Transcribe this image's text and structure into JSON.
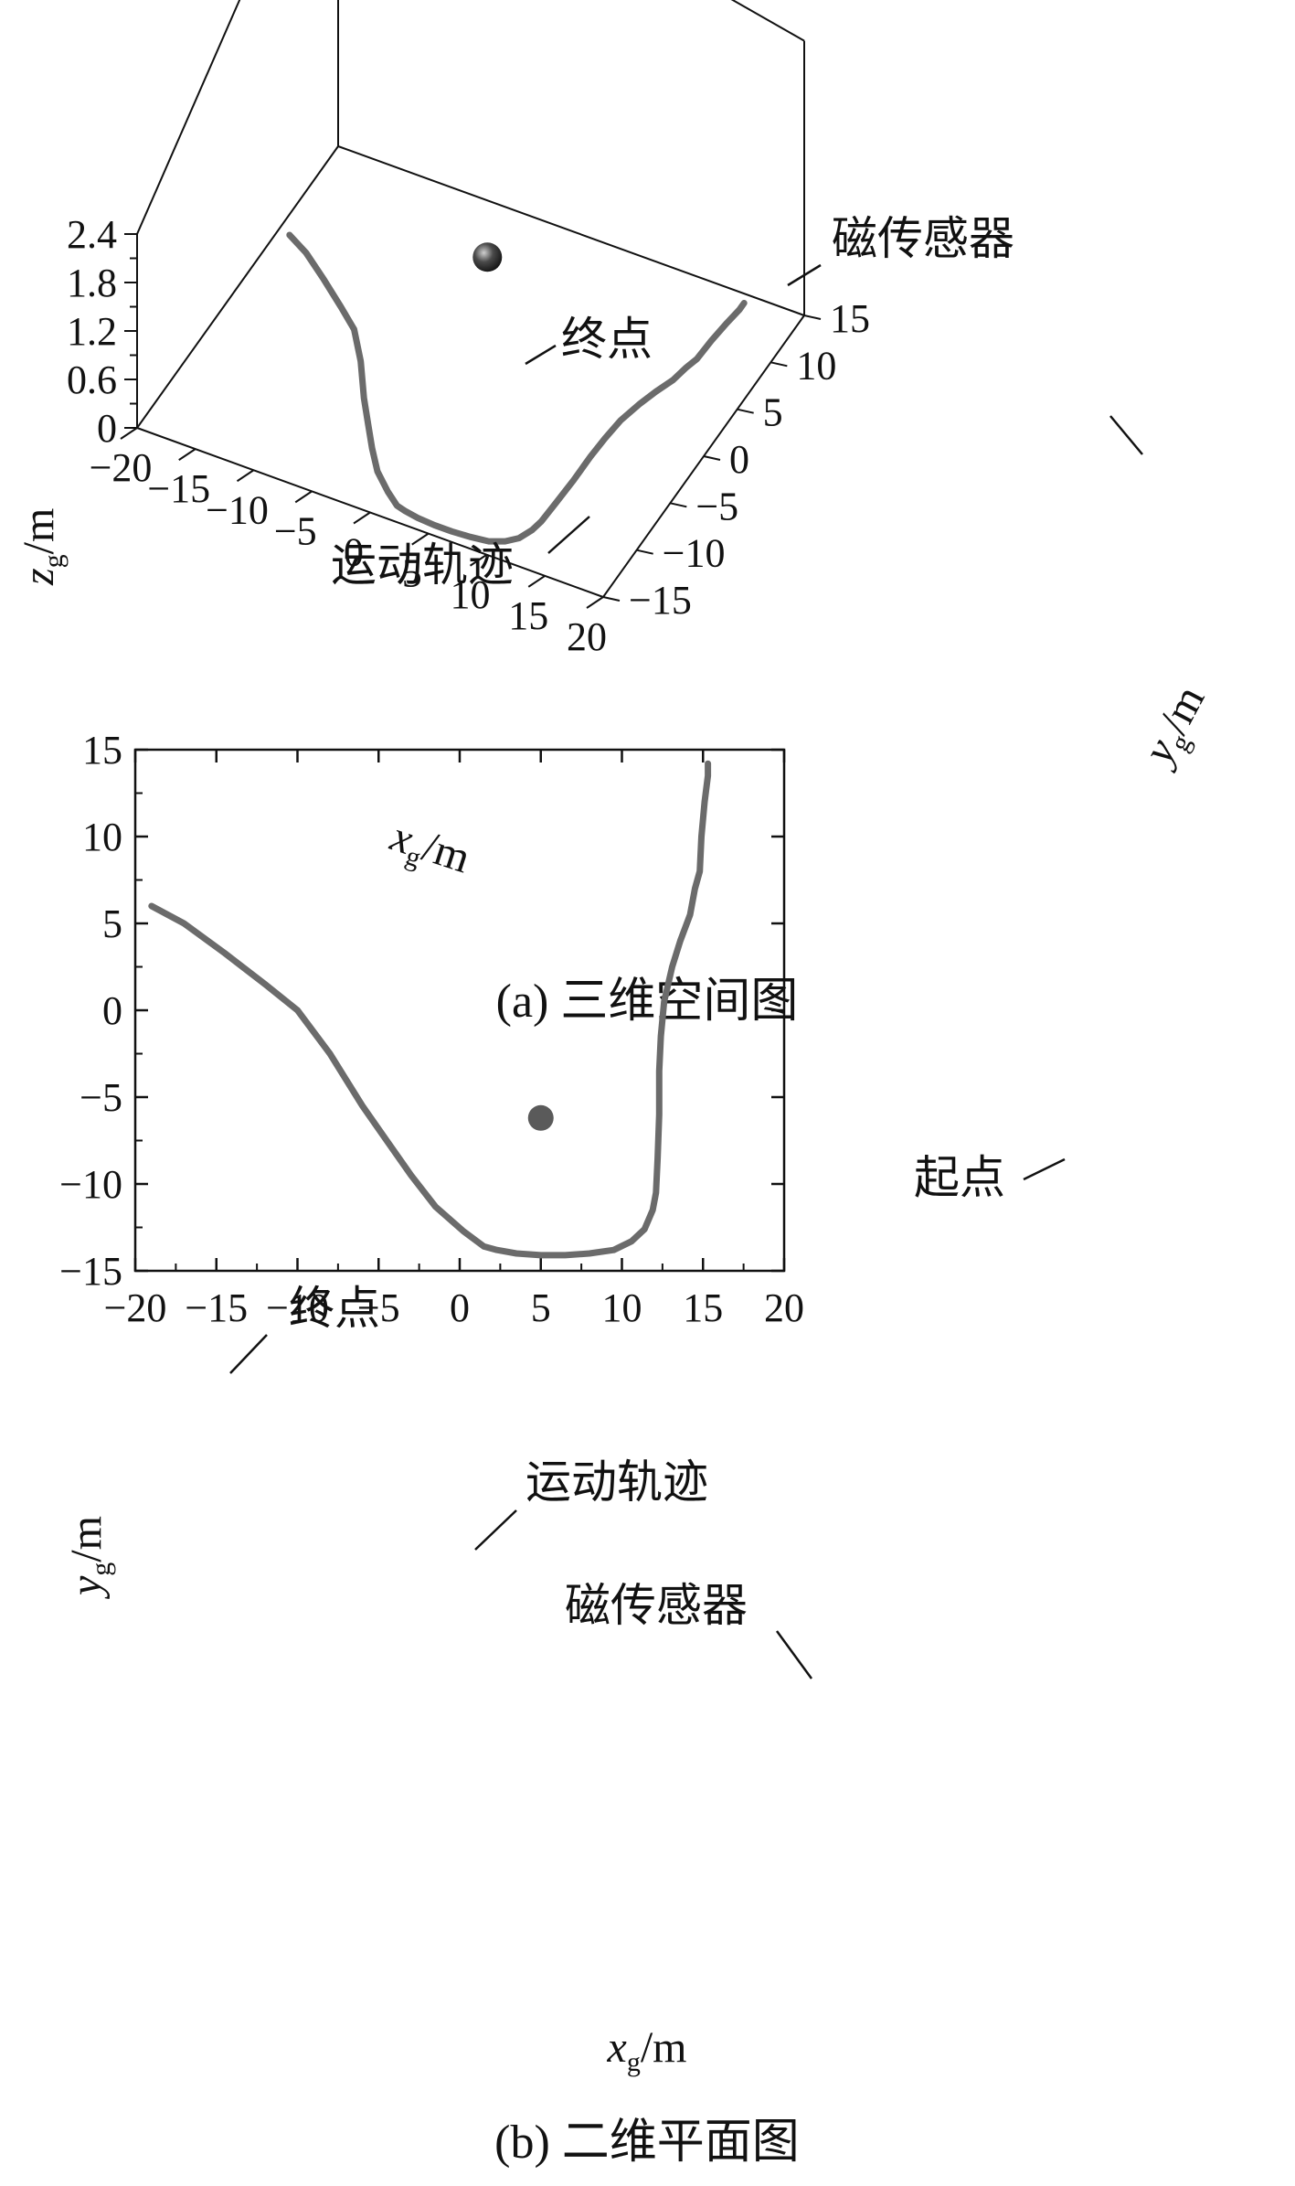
{
  "colors": {
    "trajectory": "#6b6b6b",
    "sensor": "#5a5a5a",
    "axis": "#111111"
  },
  "panel_a": {
    "caption": "(a) 三维空间图",
    "zlabel": "z_g/m",
    "xlabel": "x_g/m",
    "ylabel": "y_g/m",
    "ann_end": "终点",
    "ann_track": "运动轨迹",
    "ann_sensor": "磁传感器"
  },
  "panel_b": {
    "caption": "(b) 二维平面图",
    "ann_end": "终点",
    "ann_start": "起点",
    "ann_track": "运动轨迹",
    "ann_sensor": "磁传感器"
  },
  "chart_data": [
    {
      "type": "line",
      "title": "(a) 三维空间图",
      "projection": "3d",
      "xlabel": "x_g/m",
      "ylabel": "y_g/m",
      "zlabel": "z_g/m",
      "xlim": [
        -20,
        20
      ],
      "ylim": [
        -15,
        15
      ],
      "zlim": [
        0,
        2.4
      ],
      "xticks": [
        -20,
        -15,
        -10,
        -5,
        0,
        5,
        10,
        15,
        20
      ],
      "yticks": [
        -15,
        -10,
        -5,
        0,
        5,
        10,
        15
      ],
      "zticks": [
        0,
        0.6,
        1.2,
        1.8,
        2.4
      ],
      "series": [
        {
          "label": "运动轨迹",
          "z": 0,
          "x": [
            15.3,
            15.3,
            15.1,
            14.9,
            14.8,
            14.5,
            14.2,
            13.6,
            13.1,
            12.6,
            12.4,
            12.3,
            12.3,
            12.2,
            12.1,
            11.9,
            11.4,
            10.6,
            9.5,
            8.0,
            6.5,
            5.0,
            3.5,
            2.3,
            1.5,
            0.2,
            -1.5,
            -3.0,
            -4.5,
            -6.0,
            -8.0,
            -10.0,
            -12.0,
            -14.5,
            -17.0,
            -19.0
          ],
          "y": [
            14.2,
            13.5,
            12.0,
            10.0,
            8.0,
            7.0,
            5.5,
            4.0,
            2.5,
            0.5,
            -1.5,
            -3.5,
            -6.0,
            -8.5,
            -10.5,
            -11.5,
            -12.6,
            -13.3,
            -13.8,
            -14.0,
            -14.1,
            -14.1,
            -14.0,
            -13.8,
            -13.6,
            -12.7,
            -11.3,
            -9.5,
            -7.5,
            -5.5,
            -2.5,
            0.0,
            1.5,
            3.3,
            5.0,
            6.0
          ]
        }
      ],
      "points": [
        {
          "label": "磁传感器",
          "x": 5,
          "y": -6.2,
          "z": 2.4
        }
      ],
      "annotations": [
        "终点",
        "运动轨迹",
        "磁传感器"
      ]
    },
    {
      "type": "line",
      "title": "(b) 二维平面图",
      "xlabel": "x_g/m",
      "ylabel": "y_g/m",
      "xlim": [
        -20,
        20
      ],
      "ylim": [
        -15,
        15
      ],
      "xticks": [
        -20,
        -15,
        -10,
        -5,
        0,
        5,
        10,
        15,
        20
      ],
      "yticks": [
        -15,
        -10,
        -5,
        0,
        5,
        10,
        15
      ],
      "series": [
        {
          "label": "运动轨迹",
          "x": [
            15.3,
            15.3,
            15.1,
            14.9,
            14.8,
            14.5,
            14.2,
            13.6,
            13.1,
            12.6,
            12.4,
            12.3,
            12.3,
            12.2,
            12.1,
            11.9,
            11.4,
            10.6,
            9.5,
            8.0,
            6.5,
            5.0,
            3.5,
            2.3,
            1.5,
            0.2,
            -1.5,
            -3.0,
            -4.5,
            -6.0,
            -8.0,
            -10.0,
            -12.0,
            -14.5,
            -17.0,
            -19.0
          ],
          "y": [
            14.2,
            13.5,
            12.0,
            10.0,
            8.0,
            7.0,
            5.5,
            4.0,
            2.5,
            0.5,
            -1.5,
            -3.5,
            -6.0,
            -8.5,
            -10.5,
            -11.5,
            -12.6,
            -13.3,
            -13.8,
            -14.0,
            -14.1,
            -14.1,
            -14.0,
            -13.8,
            -13.6,
            -12.7,
            -11.3,
            -9.5,
            -7.5,
            -5.5,
            -2.5,
            0.0,
            1.5,
            3.3,
            5.0,
            6.0
          ]
        }
      ],
      "points": [
        {
          "label": "磁传感器",
          "x": 5,
          "y": -6.2
        }
      ],
      "annotations": [
        "起点",
        "终点",
        "运动轨迹",
        "磁传感器"
      ]
    }
  ]
}
